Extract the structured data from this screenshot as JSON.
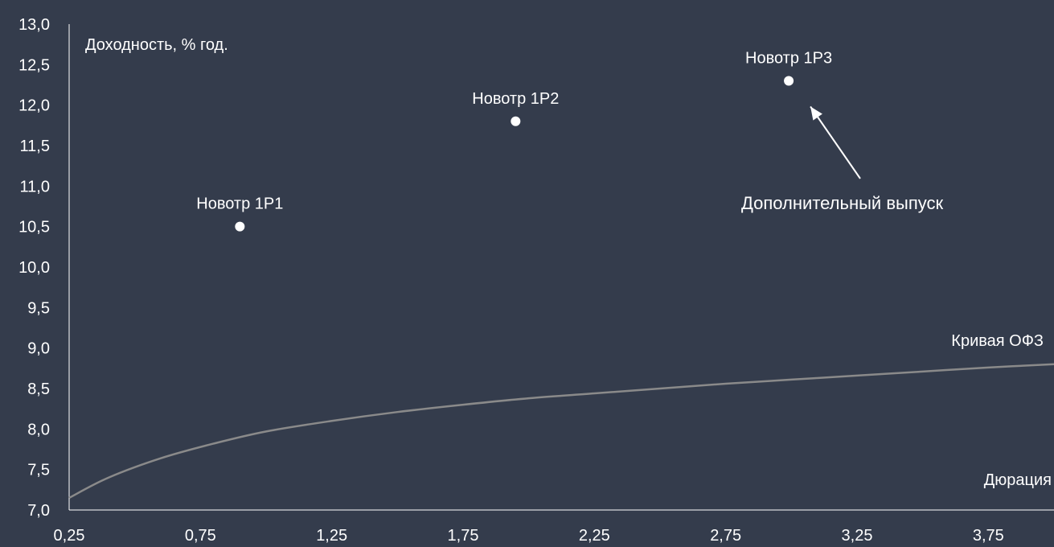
{
  "chart_data": {
    "type": "scatter",
    "title": "",
    "xlabel": "Дюрация",
    "ylabel": "Доходность, % год.",
    "xlim": [
      0.25,
      4.0
    ],
    "ylim": [
      7.0,
      13.0
    ],
    "x_ticks": [
      "0,25",
      "0,75",
      "1,25",
      "1,75",
      "2,25",
      "2,75",
      "3,25",
      "3,75"
    ],
    "y_ticks": [
      "7,0",
      "7,5",
      "8,0",
      "8,5",
      "9,0",
      "9,5",
      "10,0",
      "10,5",
      "11,0",
      "11,5",
      "12,0",
      "12,5",
      "13,0"
    ],
    "grid": false,
    "series": [
      {
        "kind": "points",
        "points": [
          {
            "label": "Новотр 1Р1",
            "x": 0.9,
            "y": 10.5
          },
          {
            "label": "Новотр 1Р2",
            "x": 1.95,
            "y": 11.8
          },
          {
            "label": "Новотр 1Р3",
            "x": 2.99,
            "y": 12.3
          }
        ]
      },
      {
        "kind": "curve",
        "name": "Кривая ОФЗ",
        "x": [
          0.25,
          0.4,
          0.6,
          0.8,
          1.0,
          1.25,
          1.5,
          1.75,
          2.0,
          2.25,
          2.5,
          2.75,
          3.0,
          3.25,
          3.5,
          3.75,
          4.0
        ],
        "y": [
          7.15,
          7.4,
          7.64,
          7.82,
          7.97,
          8.1,
          8.21,
          8.3,
          8.38,
          8.44,
          8.5,
          8.56,
          8.61,
          8.66,
          8.71,
          8.76,
          8.8
        ]
      }
    ],
    "annotation": {
      "text": "Дополнительный выпуск",
      "target": "Новотр 1Р3"
    }
  },
  "colors": {
    "background": "#343c4c",
    "text": "#ffffff",
    "curve": "#8a8a8a",
    "points": "#ffffff",
    "axis": "#ffffff"
  }
}
